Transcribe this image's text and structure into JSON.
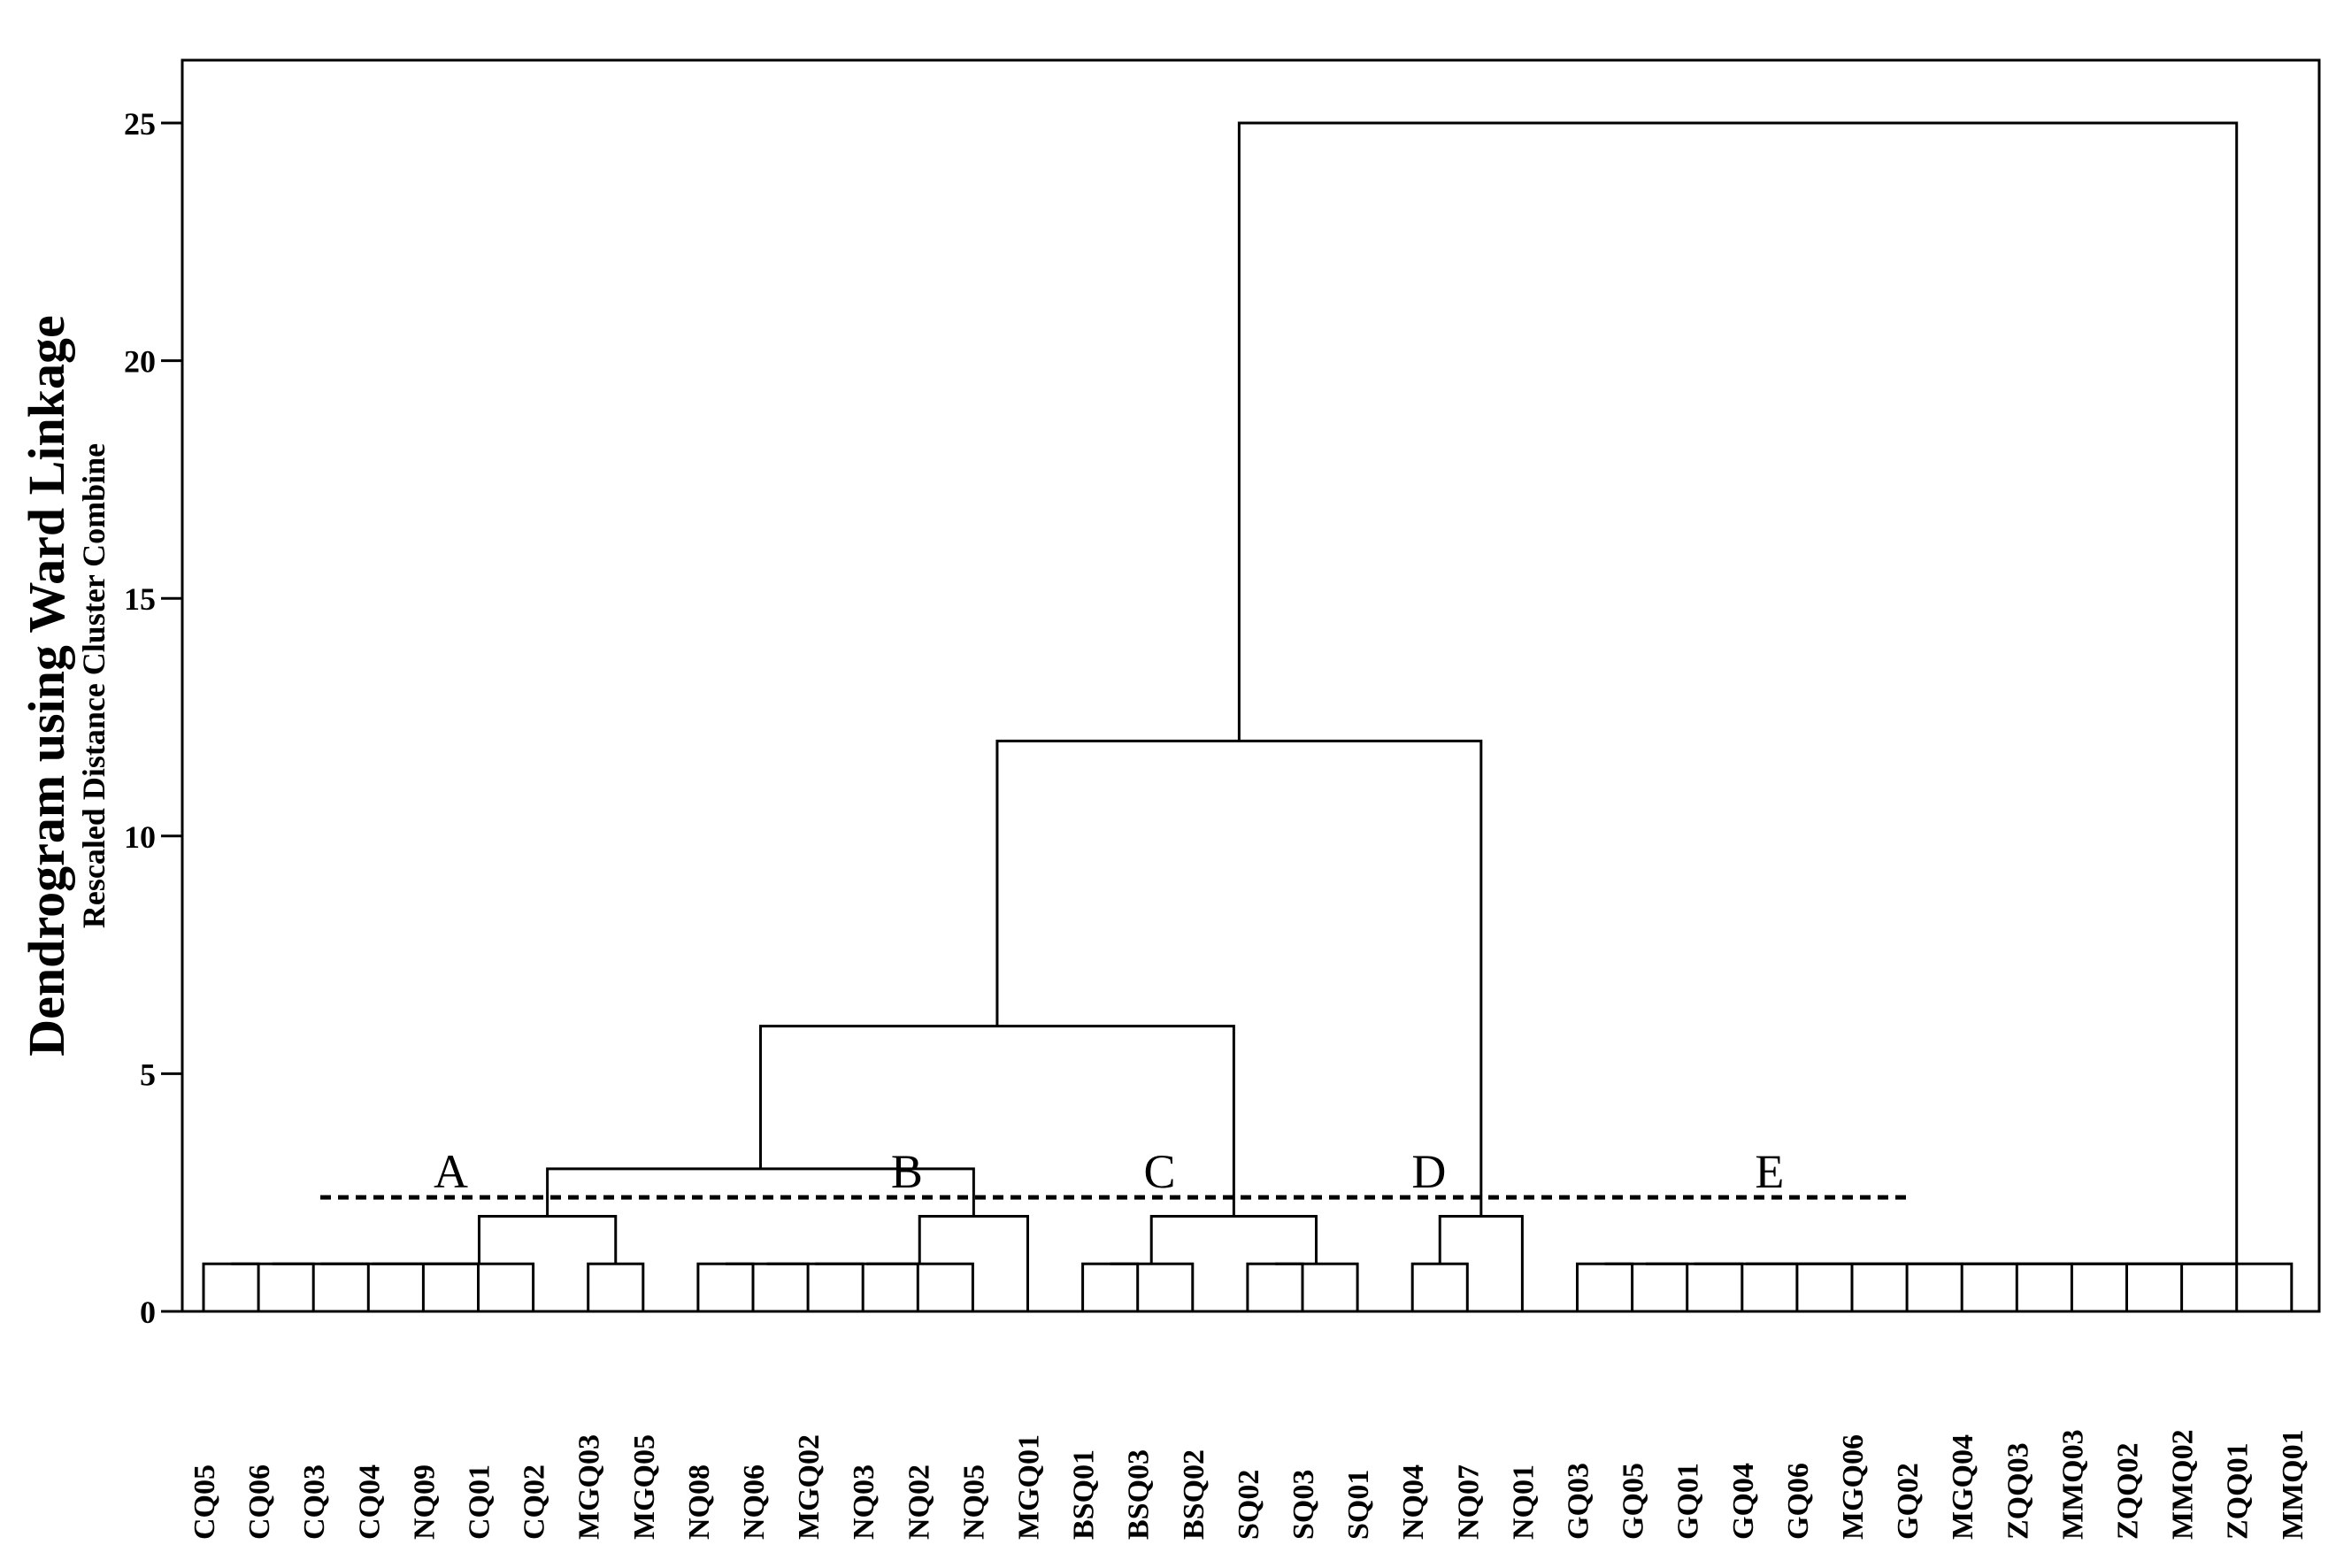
{
  "chart_data": {
    "type": "dendrogram",
    "title": "Dendrogram using Ward Linkage",
    "ylabel": "Rescaled Distance Cluster Combine",
    "ylim": [
      0,
      26
    ],
    "yticks": [
      0,
      5,
      10,
      15,
      20,
      25
    ],
    "grid": false,
    "leaves": [
      "CQ05",
      "CQ06",
      "CQ03",
      "CQ04",
      "NQ09",
      "CQ01",
      "CQ02",
      "MGQ03",
      "MGQ05",
      "NQ08",
      "NQ06",
      "MGQ02",
      "NQ03",
      "NQ02",
      "NQ05",
      "MGQ01",
      "BSQ01",
      "BSQ03",
      "BSQ02",
      "SQ02",
      "SQ03",
      "SQ01",
      "NQ04",
      "NQ07",
      "NQ01",
      "GQ03",
      "GQ05",
      "GQ01",
      "GQ04",
      "GQ06",
      "MGQ06",
      "GQ02",
      "MGQ04",
      "ZQQ03",
      "MMQ03",
      "ZQQ02",
      "MMQ02",
      "ZQQ01",
      "MMQ01"
    ],
    "merges": [
      {
        "id": "p1",
        "left": 0,
        "right": 1,
        "height": 1
      },
      {
        "id": "p2",
        "left": "p1",
        "right": 2,
        "height": 1
      },
      {
        "id": "p3",
        "left": "p2",
        "right": 3,
        "height": 1
      },
      {
        "id": "p4",
        "left": "p3",
        "right": 4,
        "height": 1
      },
      {
        "id": "p5",
        "left": "p4",
        "right": 5,
        "height": 1
      },
      {
        "id": "p6",
        "left": "p5",
        "right": 6,
        "height": 1
      },
      {
        "id": "m1",
        "left": 7,
        "right": 8,
        "height": 1
      },
      {
        "id": "A",
        "left": "p6",
        "right": "m1",
        "height": 2
      },
      {
        "id": "b1",
        "left": 9,
        "right": 10,
        "height": 1
      },
      {
        "id": "b2",
        "left": "b1",
        "right": 11,
        "height": 1
      },
      {
        "id": "b3",
        "left": "b2",
        "right": 12,
        "height": 1
      },
      {
        "id": "b4",
        "left": "b3",
        "right": 13,
        "height": 1
      },
      {
        "id": "b5",
        "left": "b4",
        "right": 14,
        "height": 1
      },
      {
        "id": "B",
        "left": "b5",
        "right": 15,
        "height": 2
      },
      {
        "id": "AB",
        "left": "A",
        "right": "B",
        "height": 3
      },
      {
        "id": "c1",
        "left": 16,
        "right": 17,
        "height": 1
      },
      {
        "id": "c2",
        "left": "c1",
        "right": 18,
        "height": 1
      },
      {
        "id": "c3",
        "left": 19,
        "right": 20,
        "height": 1
      },
      {
        "id": "c4",
        "left": "c3",
        "right": 21,
        "height": 1
      },
      {
        "id": "C",
        "left": "c2",
        "right": "c4",
        "height": 2
      },
      {
        "id": "ABC",
        "left": "AB",
        "right": "C",
        "height": 6
      },
      {
        "id": "d1",
        "left": 22,
        "right": 23,
        "height": 1
      },
      {
        "id": "D",
        "left": "d1",
        "right": 24,
        "height": 2
      },
      {
        "id": "ABCD",
        "left": "ABC",
        "right": "D",
        "height": 12
      },
      {
        "id": "e1",
        "left": 25,
        "right": 26,
        "height": 1
      },
      {
        "id": "e2",
        "left": "e1",
        "right": 27,
        "height": 1
      },
      {
        "id": "e3",
        "left": "e2",
        "right": 28,
        "height": 1
      },
      {
        "id": "e4",
        "left": "e3",
        "right": 29,
        "height": 1
      },
      {
        "id": "e5",
        "left": "e4",
        "right": 30,
        "height": 1
      },
      {
        "id": "e6",
        "left": "e5",
        "right": 31,
        "height": 1
      },
      {
        "id": "e7",
        "left": "e6",
        "right": 32,
        "height": 1
      },
      {
        "id": "e8",
        "left": "e7",
        "right": 33,
        "height": 1
      },
      {
        "id": "e9",
        "left": "e8",
        "right": 34,
        "height": 1
      },
      {
        "id": "e10",
        "left": "e9",
        "right": 35,
        "height": 1
      },
      {
        "id": "e11",
        "left": "e10",
        "right": 36,
        "height": 1
      },
      {
        "id": "e12",
        "left": "e11",
        "right": 37,
        "height": 1
      },
      {
        "id": "E",
        "left": "e12",
        "right": 38,
        "height": 1
      },
      {
        "id": "root",
        "left": "ABCD",
        "right": "E",
        "height": 25
      }
    ],
    "cut_line": {
      "height": 2.4,
      "style": "dashed"
    },
    "cluster_labels": [
      {
        "text": "A",
        "leaf_position": 4.5
      },
      {
        "text": "B",
        "leaf_position": 12.8
      },
      {
        "text": "C",
        "leaf_position": 17.4
      },
      {
        "text": "D",
        "leaf_position": 22.3
      },
      {
        "text": "E",
        "leaf_position": 28.5
      }
    ],
    "colors": {
      "line": "#000000",
      "background": "#ffffff"
    }
  }
}
